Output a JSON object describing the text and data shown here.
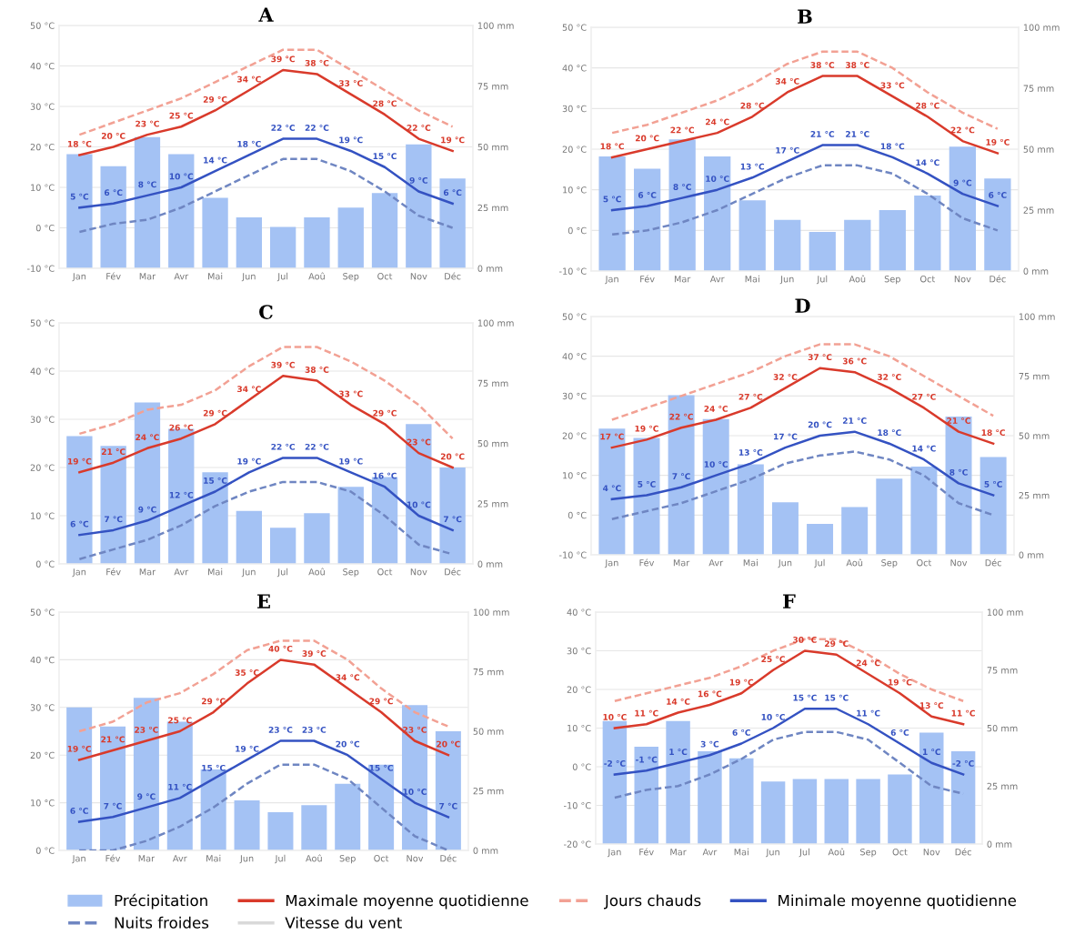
{
  "chart_data": [
    {
      "type": "bar",
      "title": "A",
      "categories": [
        "Jan",
        "Fév",
        "Mar",
        "Avr",
        "Mai",
        "Jun",
        "Jul",
        "Aoû",
        "Sep",
        "Oct",
        "Nov",
        "Déc"
      ],
      "grid": "y",
      "ylim": [
        -10,
        50
      ],
      "yticks": [
        {
          "value": -10,
          "label": "-10 °C"
        },
        {
          "value": 0,
          "label": "0 °C"
        },
        {
          "value": 10,
          "label": "10 °C"
        },
        {
          "value": 20,
          "label": "20 °C"
        },
        {
          "value": 30,
          "label": "30 °C"
        },
        {
          "value": 40,
          "label": "40 °C"
        },
        {
          "value": 50,
          "label": "50 °C"
        }
      ],
      "y2lim": [
        0,
        100
      ],
      "y2ticks": [
        {
          "value": 0,
          "label": "0 mm"
        },
        {
          "value": 25,
          "label": "25 mm"
        },
        {
          "value": 50,
          "label": "50 mm"
        },
        {
          "value": 75,
          "label": "75 mm"
        },
        {
          "value": 100,
          "label": "100 mm"
        }
      ],
      "series": [
        {
          "axis": "y2",
          "color": "#a4c2f4",
          "values": [
            47,
            42,
            54,
            47,
            29,
            21,
            17,
            21,
            25,
            31,
            51,
            37
          ]
        },
        {
          "type": "line",
          "color": "#d93a2b",
          "values": [
            18,
            20,
            23,
            25,
            29,
            34,
            39,
            38,
            33,
            28,
            22,
            19
          ],
          "value_labels": [
            "18 °C",
            "20 °C",
            "23 °C",
            "25 °C",
            "29 °C",
            "34 °C",
            "39 °C",
            "38 °C",
            "33 °C",
            "28 °C",
            "22 °C",
            "19 °C"
          ]
        },
        {
          "type": "line",
          "line_style": "dashed",
          "color": "#f2a194",
          "values": [
            23,
            26,
            29,
            32,
            36,
            40,
            44,
            44,
            39,
            34,
            29,
            25
          ]
        },
        {
          "type": "line",
          "color": "#3452c2",
          "values": [
            5,
            6,
            8,
            10,
            14,
            18,
            22,
            22,
            19,
            15,
            9,
            6
          ],
          "value_labels": [
            "5 °C",
            "6 °C",
            "8 °C",
            "10 °C",
            "14 °C",
            "18 °C",
            "22 °C",
            "22 °C",
            "19 °C",
            "15 °C",
            "9 °C",
            "6 °C"
          ]
        },
        {
          "type": "line",
          "line_style": "dashed",
          "color": "#6f86c2",
          "values": [
            -1,
            1,
            2,
            5,
            9,
            13,
            17,
            17,
            14,
            9,
            3,
            0
          ]
        }
      ]
    },
    {
      "type": "bar",
      "title": "B",
      "categories": [
        "Jan",
        "Fév",
        "Mar",
        "Avr",
        "Mai",
        "Jun",
        "Jul",
        "Aoû",
        "Sep",
        "Oct",
        "Nov",
        "Déc"
      ],
      "grid": "y",
      "ylim": [
        -10,
        50
      ],
      "yticks": [
        {
          "value": -10,
          "label": "-10 °C"
        },
        {
          "value": 0,
          "label": "0 °C"
        },
        {
          "value": 10,
          "label": "10 °C"
        },
        {
          "value": 20,
          "label": "20 °C"
        },
        {
          "value": 30,
          "label": "30 °C"
        },
        {
          "value": 40,
          "label": "40 °C"
        },
        {
          "value": 50,
          "label": "50 °C"
        }
      ],
      "y2lim": [
        0,
        100
      ],
      "y2ticks": [
        {
          "value": 0,
          "label": "0 mm"
        },
        {
          "value": 25,
          "label": "25 mm"
        },
        {
          "value": 50,
          "label": "50 mm"
        },
        {
          "value": 75,
          "label": "75 mm"
        },
        {
          "value": 100,
          "label": "100 mm"
        }
      ],
      "series": [
        {
          "axis": "y2",
          "color": "#a4c2f4",
          "values": [
            47,
            42,
            54,
            47,
            29,
            21,
            16,
            21,
            25,
            31,
            51,
            38
          ]
        },
        {
          "type": "line",
          "color": "#d93a2b",
          "values": [
            18,
            20,
            22,
            24,
            28,
            34,
            38,
            38,
            33,
            28,
            22,
            19
          ],
          "value_labels": [
            "18 °C",
            "20 °C",
            "22 °C",
            "24 °C",
            "28 °C",
            "34 °C",
            "38 °C",
            "38 °C",
            "33 °C",
            "28 °C",
            "22 °C",
            "19 °C"
          ]
        },
        {
          "type": "line",
          "line_style": "dashed",
          "color": "#f2a194",
          "values": [
            24,
            26,
            29,
            32,
            36,
            41,
            44,
            44,
            40,
            34,
            29,
            25
          ]
        },
        {
          "type": "line",
          "color": "#3452c2",
          "values": [
            5,
            6,
            8,
            10,
            13,
            17,
            21,
            21,
            18,
            14,
            9,
            6
          ],
          "value_labels": [
            "5 °C",
            "6 °C",
            "8 °C",
            "10 °C",
            "13 °C",
            "17 °C",
            "21 °C",
            "21 °C",
            "18 °C",
            "14 °C",
            "9 °C",
            "6 °C"
          ]
        },
        {
          "type": "line",
          "line_style": "dashed",
          "color": "#6f86c2",
          "values": [
            -1,
            0,
            2,
            5,
            9,
            13,
            16,
            16,
            14,
            9,
            3,
            0
          ]
        }
      ]
    },
    {
      "type": "bar",
      "title": "C",
      "categories": [
        "Jan",
        "Fév",
        "Mar",
        "Avr",
        "Mai",
        "Jun",
        "Jul",
        "Aoû",
        "Sep",
        "Oct",
        "Nov",
        "Déc"
      ],
      "grid": "y",
      "ylim": [
        0,
        50
      ],
      "yticks": [
        {
          "value": 0,
          "label": "0 °C"
        },
        {
          "value": 10,
          "label": "10 °C"
        },
        {
          "value": 20,
          "label": "20 °C"
        },
        {
          "value": 30,
          "label": "30 °C"
        },
        {
          "value": 40,
          "label": "40 °C"
        },
        {
          "value": 50,
          "label": "50 °C"
        }
      ],
      "y2lim": [
        0,
        100
      ],
      "y2ticks": [
        {
          "value": 0,
          "label": "0 mm"
        },
        {
          "value": 25,
          "label": "25 mm"
        },
        {
          "value": 50,
          "label": "50 mm"
        },
        {
          "value": 75,
          "label": "75 mm"
        },
        {
          "value": 100,
          "label": "100 mm"
        }
      ],
      "series": [
        {
          "axis": "y2",
          "color": "#a4c2f4",
          "values": [
            53,
            49,
            67,
            56,
            38,
            22,
            15,
            21,
            32,
            36,
            58,
            40
          ]
        },
        {
          "type": "line",
          "color": "#d93a2b",
          "values": [
            19,
            21,
            24,
            26,
            29,
            34,
            39,
            38,
            33,
            29,
            23,
            20
          ],
          "value_labels": [
            "19 °C",
            "21 °C",
            "24 °C",
            "26 °C",
            "29 °C",
            "34 °C",
            "39 °C",
            "38 °C",
            "33 °C",
            "29 °C",
            "23 °C",
            "20 °C"
          ]
        },
        {
          "type": "line",
          "line_style": "dashed",
          "color": "#f2a194",
          "values": [
            27,
            29,
            32,
            33,
            36,
            41,
            45,
            45,
            42,
            38,
            33,
            26
          ]
        },
        {
          "type": "line",
          "color": "#3452c2",
          "values": [
            6,
            7,
            9,
            12,
            15,
            19,
            22,
            22,
            19,
            16,
            10,
            7
          ],
          "value_labels": [
            "6 °C",
            "7 °C",
            "9 °C",
            "12 °C",
            "15 °C",
            "19 °C",
            "22 °C",
            "22 °C",
            "19 °C",
            "16 °C",
            "10 °C",
            "7 °C"
          ]
        },
        {
          "type": "line",
          "line_style": "dashed",
          "color": "#6f86c2",
          "values": [
            1,
            3,
            5,
            8,
            12,
            15,
            17,
            17,
            15,
            10,
            4,
            2
          ]
        }
      ]
    },
    {
      "type": "bar",
      "title": "D",
      "categories": [
        "Jan",
        "Fév",
        "Mar",
        "Avr",
        "Mai",
        "Jun",
        "Jul",
        "Aoû",
        "Sep",
        "Oct",
        "Nov",
        "Déc"
      ],
      "grid": "y",
      "ylim": [
        -10,
        50
      ],
      "yticks": [
        {
          "value": -10,
          "label": "-10 °C"
        },
        {
          "value": 0,
          "label": "0 °C"
        },
        {
          "value": 10,
          "label": "10 °C"
        },
        {
          "value": 20,
          "label": "20 °C"
        },
        {
          "value": 30,
          "label": "30 °C"
        },
        {
          "value": 40,
          "label": "40 °C"
        },
        {
          "value": 50,
          "label": "50 °C"
        }
      ],
      "y2lim": [
        0,
        100
      ],
      "y2ticks": [
        {
          "value": 0,
          "label": "0 mm"
        },
        {
          "value": 25,
          "label": "25 mm"
        },
        {
          "value": 50,
          "label": "50 mm"
        },
        {
          "value": 75,
          "label": "75 mm"
        },
        {
          "value": 100,
          "label": "100 mm"
        }
      ],
      "series": [
        {
          "axis": "y2",
          "color": "#a4c2f4",
          "values": [
            53,
            49,
            67,
            57,
            38,
            22,
            13,
            20,
            32,
            37,
            58,
            41
          ]
        },
        {
          "type": "line",
          "color": "#d93a2b",
          "values": [
            17,
            19,
            22,
            24,
            27,
            32,
            37,
            36,
            32,
            27,
            21,
            18
          ],
          "value_labels": [
            "17 °C",
            "19 °C",
            "22 °C",
            "24 °C",
            "27 °C",
            "32 °C",
            "37 °C",
            "36 °C",
            "32 °C",
            "27 °C",
            "21 °C",
            "18 °C"
          ]
        },
        {
          "type": "line",
          "line_style": "dashed",
          "color": "#f2a194",
          "values": [
            24,
            27,
            30,
            33,
            36,
            40,
            43,
            43,
            40,
            35,
            30,
            25
          ]
        },
        {
          "type": "line",
          "color": "#3452c2",
          "values": [
            4,
            5,
            7,
            10,
            13,
            17,
            20,
            21,
            18,
            14,
            8,
            5
          ],
          "value_labels": [
            "4 °C",
            "5 °C",
            "7 °C",
            "10 °C",
            "13 °C",
            "17 °C",
            "20 °C",
            "21 °C",
            "18 °C",
            "14 °C",
            "8 °C",
            "5 °C"
          ]
        },
        {
          "type": "line",
          "line_style": "dashed",
          "color": "#6f86c2",
          "values": [
            -1,
            1,
            3,
            6,
            9,
            13,
            15,
            16,
            14,
            10,
            3,
            0
          ]
        }
      ]
    },
    {
      "type": "bar",
      "title": "E",
      "categories": [
        "Jan",
        "Fév",
        "Mar",
        "Avr",
        "Mai",
        "Jun",
        "Jul",
        "Aoû",
        "Sep",
        "Oct",
        "Nov",
        "Déc"
      ],
      "grid": "y",
      "ylim": [
        0,
        50
      ],
      "yticks": [
        {
          "value": 0,
          "label": "0 °C"
        },
        {
          "value": 10,
          "label": "10 °C"
        },
        {
          "value": 20,
          "label": "20 °C"
        },
        {
          "value": 30,
          "label": "30 °C"
        },
        {
          "value": 40,
          "label": "40 °C"
        },
        {
          "value": 50,
          "label": "50 °C"
        }
      ],
      "y2lim": [
        0,
        100
      ],
      "y2ticks": [
        {
          "value": 0,
          "label": "0 mm"
        },
        {
          "value": 25,
          "label": "25 mm"
        },
        {
          "value": 50,
          "label": "50 mm"
        },
        {
          "value": 75,
          "label": "75 mm"
        },
        {
          "value": 100,
          "label": "100 mm"
        }
      ],
      "series": [
        {
          "axis": "y2",
          "color": "#a4c2f4",
          "values": [
            60,
            52,
            64,
            54,
            34,
            21,
            16,
            19,
            28,
            36,
            61,
            50
          ]
        },
        {
          "type": "line",
          "color": "#d93a2b",
          "values": [
            19,
            21,
            23,
            25,
            29,
            35,
            40,
            39,
            34,
            29,
            23,
            20
          ],
          "value_labels": [
            "19 °C",
            "21 °C",
            "23 °C",
            "25 °C",
            "29 °C",
            "35 °C",
            "40 °C",
            "39 °C",
            "34 °C",
            "29 °C",
            "23 °C",
            "20 °C"
          ]
        },
        {
          "type": "line",
          "line_style": "dashed",
          "color": "#f2a194",
          "values": [
            25,
            27,
            31,
            33,
            37,
            42,
            44,
            44,
            40,
            34,
            29,
            26
          ]
        },
        {
          "type": "line",
          "color": "#3452c2",
          "values": [
            6,
            7,
            9,
            11,
            15,
            19,
            23,
            23,
            20,
            15,
            10,
            7
          ],
          "value_labels": [
            "6 °C",
            "7 °C",
            "9 °C",
            "11 °C",
            "15 °C",
            "19 °C",
            "23 °C",
            "23 °C",
            "20 °C",
            "15 °C",
            "10 °C",
            "7 °C"
          ]
        },
        {
          "type": "line",
          "line_style": "dashed",
          "color": "#6f86c2",
          "values": [
            0,
            0,
            2,
            5,
            9,
            14,
            18,
            18,
            15,
            9,
            3,
            0
          ]
        }
      ]
    },
    {
      "type": "bar",
      "title": "F",
      "categories": [
        "Jan",
        "Fév",
        "Mar",
        "Avr",
        "Mai",
        "Jun",
        "Jul",
        "Aoû",
        "Sep",
        "Oct",
        "Nov",
        "Déc"
      ],
      "grid": "y",
      "legend": "bottom",
      "ylim": [
        -20,
        40
      ],
      "yticks": [
        {
          "value": -20,
          "label": "-20 °C"
        },
        {
          "value": -10,
          "label": "-10 °C"
        },
        {
          "value": 0,
          "label": "0 °C"
        },
        {
          "value": 10,
          "label": "10 °C"
        },
        {
          "value": 20,
          "label": "20 °C"
        },
        {
          "value": 30,
          "label": "30 °C"
        },
        {
          "value": 40,
          "label": "40 °C"
        }
      ],
      "y2lim": [
        0,
        100
      ],
      "y2ticks": [
        {
          "value": 0,
          "label": "0 mm"
        },
        {
          "value": 25,
          "label": "25 mm"
        },
        {
          "value": 50,
          "label": "50 mm"
        },
        {
          "value": 75,
          "label": "75 mm"
        },
        {
          "value": 100,
          "label": "100 mm"
        }
      ],
      "series": [
        {
          "axis": "y2",
          "name": "Précipitation",
          "color": "#a4c2f4",
          "values": [
            53,
            42,
            53,
            40,
            37,
            27,
            28,
            28,
            28,
            30,
            48,
            40
          ]
        },
        {
          "type": "line",
          "name": "Maximale moyenne quotidienne",
          "color": "#d93a2b",
          "values": [
            10,
            11,
            14,
            16,
            19,
            25,
            30,
            29,
            24,
            19,
            13,
            11
          ],
          "value_labels": [
            "10 °C",
            "11 °C",
            "14 °C",
            "16 °C",
            "19 °C",
            "25 °C",
            "30 °C",
            "29 °C",
            "24 °C",
            "19 °C",
            "13 °C",
            "11 °C"
          ]
        },
        {
          "type": "line",
          "name": "Jours chauds",
          "line_style": "dashed",
          "color": "#f2a194",
          "values": [
            17,
            19,
            21,
            23,
            26,
            30,
            33,
            33,
            29,
            24,
            20,
            17
          ]
        },
        {
          "type": "line",
          "name": "Minimale moyenne quotidienne",
          "color": "#3452c2",
          "values": [
            -2,
            -1,
            1,
            3,
            6,
            10,
            15,
            15,
            11,
            6,
            1,
            -2
          ],
          "value_labels": [
            "-2 °C",
            "-1 °C",
            "1 °C",
            "3 °C",
            "6 °C",
            "10 °C",
            "15 °C",
            "15 °C",
            "11 °C",
            "6 °C",
            "1 °C",
            "-2 °C"
          ]
        },
        {
          "type": "line",
          "name": "Nuits froides",
          "line_style": "dashed",
          "color": "#6f86c2",
          "values": [
            -8,
            -6,
            -5,
            -2,
            2,
            7,
            9,
            9,
            7,
            1,
            -5,
            -7
          ]
        },
        {
          "type": "line",
          "name": "Vitesse du vent",
          "color": "#d9d9d9",
          "values": [
            null,
            null,
            null,
            null,
            null,
            null,
            null,
            null,
            null,
            null,
            null,
            null
          ]
        }
      ]
    }
  ]
}
